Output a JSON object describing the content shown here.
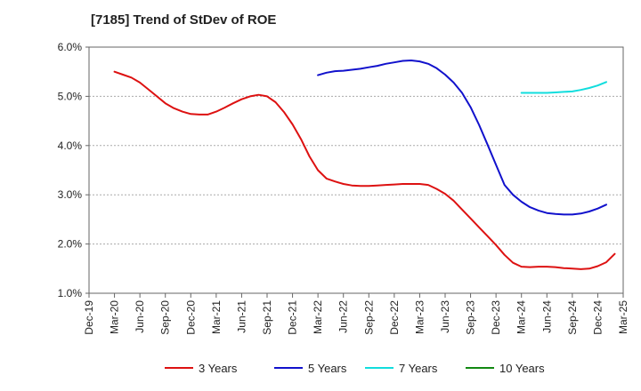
{
  "chart_data": {
    "type": "line",
    "title": "[7185]  Trend of StDev of ROE",
    "xlabel": "",
    "ylabel": "",
    "x_ticks": [
      "Dec-19",
      "Mar-20",
      "Jun-20",
      "Sep-20",
      "Dec-20",
      "Mar-21",
      "Jun-21",
      "Sep-21",
      "Dec-21",
      "Mar-22",
      "Jun-22",
      "Sep-22",
      "Dec-22",
      "Mar-23",
      "Jun-23",
      "Sep-23",
      "Dec-23",
      "Mar-24",
      "Jun-24",
      "Sep-24",
      "Dec-24",
      "Mar-25"
    ],
    "y_ticks": [
      "1.0%",
      "2.0%",
      "3.0%",
      "4.0%",
      "5.0%",
      "6.0%"
    ],
    "ylim": [
      1.0,
      6.0
    ],
    "grid": "horizontal dashed",
    "legend_position": "bottom",
    "series": [
      {
        "name": "3 Years",
        "color": "#dd1111",
        "points": [
          [
            "Mar-20",
            5.5
          ],
          [
            "Apr-20",
            5.44
          ],
          [
            "May-20",
            5.38
          ],
          [
            "Jun-20",
            5.28
          ],
          [
            "Jul-20",
            5.14
          ],
          [
            "Aug-20",
            5.0
          ],
          [
            "Sep-20",
            4.86
          ],
          [
            "Oct-20",
            4.76
          ],
          [
            "Nov-20",
            4.69
          ],
          [
            "Dec-20",
            4.64
          ],
          [
            "Jan-21",
            4.63
          ],
          [
            "Feb-21",
            4.63
          ],
          [
            "Mar-21",
            4.69
          ],
          [
            "Apr-21",
            4.77
          ],
          [
            "May-21",
            4.86
          ],
          [
            "Jun-21",
            4.94
          ],
          [
            "Jul-21",
            5.0
          ],
          [
            "Aug-21",
            5.03
          ],
          [
            "Sep-21",
            5.0
          ],
          [
            "Oct-21",
            4.88
          ],
          [
            "Nov-21",
            4.68
          ],
          [
            "Dec-21",
            4.43
          ],
          [
            "Jan-22",
            4.13
          ],
          [
            "Feb-22",
            3.78
          ],
          [
            "Mar-22",
            3.5
          ],
          [
            "Apr-22",
            3.33
          ],
          [
            "May-22",
            3.27
          ],
          [
            "Jun-22",
            3.22
          ],
          [
            "Jul-22",
            3.19
          ],
          [
            "Aug-22",
            3.18
          ],
          [
            "Sep-22",
            3.18
          ],
          [
            "Oct-22",
            3.19
          ],
          [
            "Nov-22",
            3.2
          ],
          [
            "Dec-22",
            3.21
          ],
          [
            "Jan-23",
            3.22
          ],
          [
            "Feb-23",
            3.22
          ],
          [
            "Mar-23",
            3.22
          ],
          [
            "Apr-23",
            3.2
          ],
          [
            "May-23",
            3.12
          ],
          [
            "Jun-23",
            3.02
          ],
          [
            "Jul-23",
            2.88
          ],
          [
            "Aug-23",
            2.7
          ],
          [
            "Sep-23",
            2.52
          ],
          [
            "Oct-23",
            2.34
          ],
          [
            "Nov-23",
            2.16
          ],
          [
            "Dec-23",
            1.98
          ],
          [
            "Jan-24",
            1.78
          ],
          [
            "Feb-24",
            1.62
          ],
          [
            "Mar-24",
            1.54
          ],
          [
            "Apr-24",
            1.53
          ],
          [
            "May-24",
            1.54
          ],
          [
            "Jun-24",
            1.54
          ],
          [
            "Jul-24",
            1.53
          ],
          [
            "Aug-24",
            1.51
          ],
          [
            "Sep-24",
            1.5
          ],
          [
            "Oct-24",
            1.49
          ],
          [
            "Nov-24",
            1.5
          ],
          [
            "Dec-24",
            1.55
          ],
          [
            "Jan-25",
            1.63
          ],
          [
            "Feb-25",
            1.8
          ]
        ]
      },
      {
        "name": "5 Years",
        "color": "#1111cc",
        "points": [
          [
            "Mar-22",
            5.43
          ],
          [
            "Apr-22",
            5.48
          ],
          [
            "May-22",
            5.51
          ],
          [
            "Jun-22",
            5.52
          ],
          [
            "Jul-22",
            5.54
          ],
          [
            "Aug-22",
            5.56
          ],
          [
            "Sep-22",
            5.59
          ],
          [
            "Oct-22",
            5.62
          ],
          [
            "Nov-22",
            5.66
          ],
          [
            "Dec-22",
            5.69
          ],
          [
            "Jan-23",
            5.72
          ],
          [
            "Feb-23",
            5.73
          ],
          [
            "Mar-23",
            5.71
          ],
          [
            "Apr-23",
            5.66
          ],
          [
            "May-23",
            5.57
          ],
          [
            "Jun-23",
            5.44
          ],
          [
            "Jul-23",
            5.28
          ],
          [
            "Aug-23",
            5.07
          ],
          [
            "Sep-23",
            4.78
          ],
          [
            "Oct-23",
            4.42
          ],
          [
            "Nov-23",
            4.02
          ],
          [
            "Dec-23",
            3.61
          ],
          [
            "Jan-24",
            3.2
          ],
          [
            "Feb-24",
            3.0
          ],
          [
            "Mar-24",
            2.86
          ],
          [
            "Apr-24",
            2.75
          ],
          [
            "May-24",
            2.68
          ],
          [
            "Jun-24",
            2.63
          ],
          [
            "Jul-24",
            2.61
          ],
          [
            "Aug-24",
            2.6
          ],
          [
            "Sep-24",
            2.6
          ],
          [
            "Oct-24",
            2.62
          ],
          [
            "Nov-24",
            2.66
          ],
          [
            "Dec-24",
            2.72
          ],
          [
            "Jan-25",
            2.8
          ]
        ]
      },
      {
        "name": "7 Years",
        "color": "#11dddd",
        "points": [
          [
            "Mar-24",
            5.07
          ],
          [
            "Apr-24",
            5.07
          ],
          [
            "May-24",
            5.07
          ],
          [
            "Jun-24",
            5.07
          ],
          [
            "Jul-24",
            5.08
          ],
          [
            "Aug-24",
            5.09
          ],
          [
            "Sep-24",
            5.1
          ],
          [
            "Oct-24",
            5.13
          ],
          [
            "Nov-24",
            5.17
          ],
          [
            "Dec-24",
            5.22
          ],
          [
            "Jan-25",
            5.29
          ]
        ]
      },
      {
        "name": "10 Years",
        "color": "#118811",
        "points": []
      }
    ]
  }
}
